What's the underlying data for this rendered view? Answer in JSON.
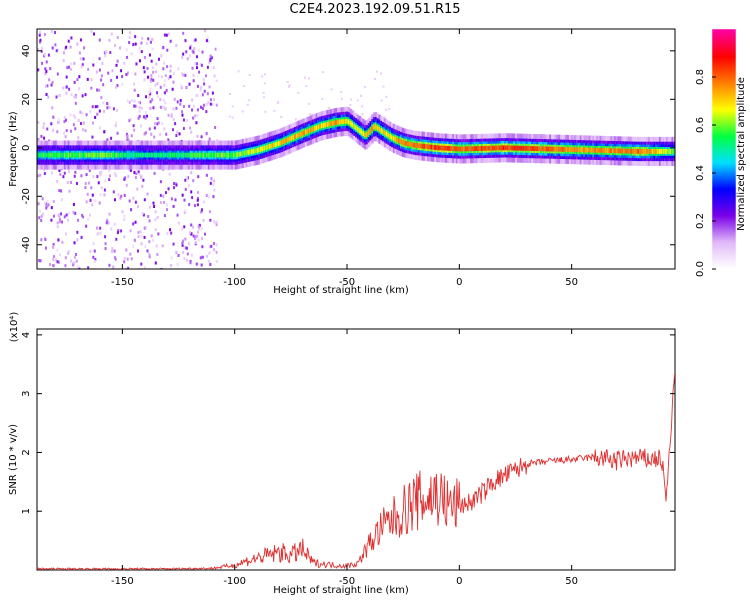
{
  "title": "C2E4.2023.192.09.51.R15",
  "chart_data": [
    {
      "type": "heatmap",
      "xlabel": "Height of straight line (km)",
      "ylabel": "Frequency (Hz)",
      "xlim": [
        -188,
        96
      ],
      "ylim": [
        -50,
        49
      ],
      "xticks": [
        -150,
        -100,
        -50,
        0,
        50
      ],
      "xtick_labels": [
        "-150",
        "-100",
        "-50",
        "0",
        "50"
      ],
      "yticks": [
        -40,
        -20,
        0,
        20,
        40
      ],
      "ytick_labels": [
        "-40",
        "-20",
        "0",
        "20",
        "40"
      ],
      "colorbar": {
        "label": "Normalized spectral amplitude",
        "range": [
          0,
          1
        ],
        "ticks": [
          0.0,
          0.2,
          0.4,
          0.6,
          0.8
        ],
        "tick_labels": [
          "0.0",
          "0.2",
          "0.4",
          "0.6",
          "0.8"
        ],
        "colors": [
          "#ffffff",
          "#e0b8f8",
          "#7a00e8",
          "#0000ff",
          "#00e0ff",
          "#00ff40",
          "#ffff00",
          "#ff8000",
          "#ff0000",
          "#ff00a0"
        ]
      },
      "ridge": {
        "x": [
          -188,
          -160,
          -140,
          -120,
          -100,
          -90,
          -80,
          -70,
          -62,
          -55,
          -50,
          -46,
          -42,
          -38,
          -35,
          -30,
          -25,
          -20,
          -10,
          0,
          20,
          40,
          60,
          80,
          96
        ],
        "freq": [
          -3,
          -3,
          -3,
          -3,
          -3,
          -1,
          2,
          6,
          9,
          10.5,
          11,
          8,
          5,
          9,
          7,
          4,
          2,
          1,
          0,
          -0.5,
          0,
          -0.5,
          -1,
          -1.5,
          -1.5
        ],
        "amplitude": [
          0.55,
          0.6,
          0.5,
          0.55,
          0.6,
          0.65,
          0.7,
          0.75,
          0.7,
          0.75,
          0.7,
          0.65,
          0.7,
          0.75,
          0.7,
          0.7,
          0.8,
          0.8,
          0.85,
          0.8,
          0.85,
          0.8,
          0.75,
          0.8,
          0.6
        ]
      }
    },
    {
      "type": "line",
      "xlabel": "Height of straight line (km)",
      "ylabel": "SNR (10 * v/v)",
      "y_multiplier": "(x10⁴)",
      "xlim": [
        -188,
        96
      ],
      "ylim": [
        0,
        4.1
      ],
      "xticks": [
        -150,
        -100,
        -50,
        0,
        50
      ],
      "xtick_labels": [
        "-150",
        "-100",
        "-50",
        "0",
        "50"
      ],
      "yticks": [
        1,
        2,
        3,
        4
      ],
      "ytick_labels": [
        "1",
        "2",
        "3",
        "4"
      ],
      "color": "#e03030",
      "x": [
        -188,
        -170,
        -150,
        -130,
        -110,
        -100,
        -95,
        -90,
        -85,
        -80,
        -75,
        -70,
        -65,
        -60,
        -55,
        -50,
        -45,
        -40,
        -35,
        -30,
        -25,
        -20,
        -15,
        -10,
        -5,
        0,
        5,
        10,
        15,
        20,
        25,
        30,
        40,
        50,
        55,
        60,
        65,
        70,
        75,
        80,
        85,
        90,
        92,
        94,
        96
      ],
      "y": [
        0.02,
        0.02,
        0.02,
        0.02,
        0.03,
        0.08,
        0.15,
        0.2,
        0.25,
        0.3,
        0.25,
        0.35,
        0.12,
        0.1,
        0.08,
        0.07,
        0.12,
        0.45,
        0.7,
        0.85,
        1.0,
        1.15,
        1.2,
        1.3,
        1.1,
        1.1,
        1.15,
        1.3,
        1.5,
        1.6,
        1.7,
        1.8,
        1.85,
        1.88,
        1.9,
        1.92,
        1.9,
        1.85,
        1.9,
        1.9,
        1.88,
        1.9,
        1.2,
        2.2,
        3.5
      ]
    }
  ]
}
